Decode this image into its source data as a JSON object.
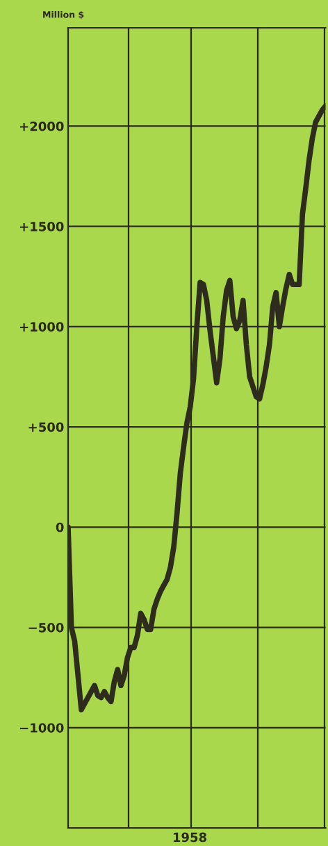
{
  "chart_data": {
    "type": "line",
    "ylabel": "Million $",
    "xlabel": "1958",
    "categories": [
      null,
      null,
      null,
      null,
      null,
      null,
      null,
      null,
      null,
      null,
      null,
      null,
      null,
      null,
      null,
      null,
      null,
      null,
      null,
      null,
      null,
      null,
      null,
      null,
      null,
      null,
      null,
      null,
      null,
      null,
      null,
      null,
      null,
      null,
      null,
      null,
      null,
      null,
      null,
      null,
      null,
      null,
      null,
      null,
      null,
      null,
      null,
      null,
      null,
      null,
      null,
      null,
      null,
      null,
      null,
      null,
      null,
      null,
      null,
      null,
      null,
      null,
      null,
      null,
      null,
      null,
      null,
      null,
      null,
      null,
      null,
      null,
      null,
      null,
      null,
      null,
      null,
      null,
      null
    ],
    "series": [
      {
        "color": "#2e2c1c",
        "values": [
          0,
          -500,
          -570,
          -740,
          -910,
          -880,
          -850,
          -820,
          -790,
          -840,
          -850,
          -820,
          -850,
          -870,
          -770,
          -710,
          -790,
          -740,
          -650,
          -600,
          -600,
          -540,
          -430,
          -460,
          -510,
          -510,
          -410,
          -360,
          -320,
          -290,
          -260,
          -200,
          -100,
          70,
          270,
          400,
          520,
          600,
          740,
          1000,
          1220,
          1210,
          1130,
          980,
          850,
          720,
          840,
          1050,
          1180,
          1230,
          1050,
          990,
          1030,
          1130,
          910,
          750,
          700,
          650,
          640,
          710,
          800,
          910,
          1100,
          1170,
          1000,
          1100,
          1190,
          1260,
          1210,
          1210,
          1210,
          1560,
          1690,
          1830,
          1940,
          2020,
          2050,
          2080,
          2100
        ]
      }
    ],
    "ylim": [
      -1500,
      2490
    ],
    "yticks": [
      {
        "value": -1000,
        "label": "−1000"
      },
      {
        "value": -500,
        "label": "−500"
      },
      0,
      {
        "value": 500,
        "label": "+500"
      },
      {
        "value": 1000,
        "label": "+1000"
      },
      {
        "value": 1500,
        "label": "+1500"
      },
      {
        "value": 2000,
        "label": "+2000"
      }
    ],
    "grid": true,
    "marker": "none",
    "line_style": "solid"
  }
}
